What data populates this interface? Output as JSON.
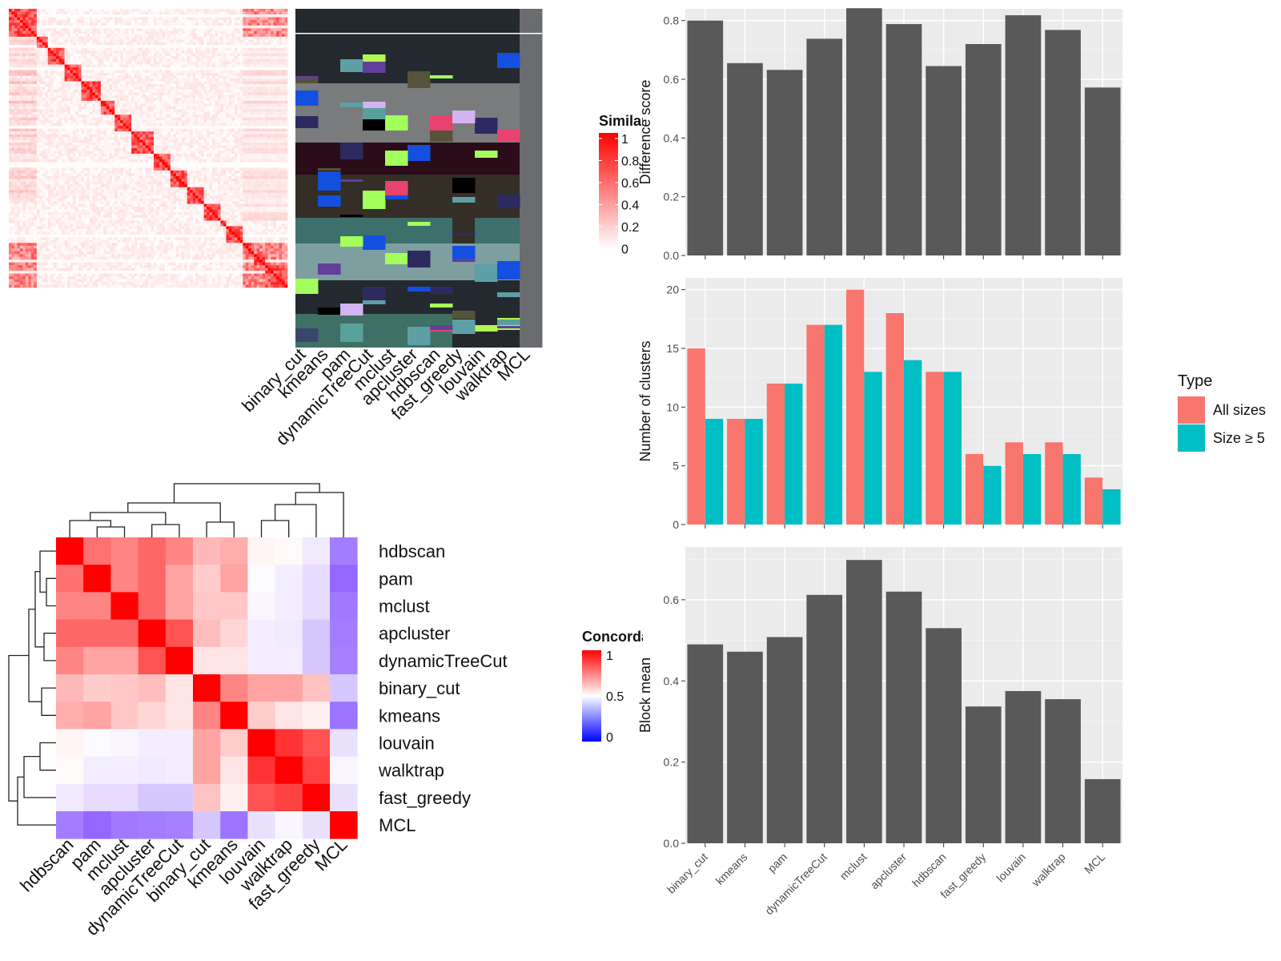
{
  "similarity_heatmap": {
    "legend_title": "Similarity",
    "legend_ticks": [
      "1",
      "0.8",
      "0.6",
      "0.4",
      "0.2",
      "0"
    ],
    "method_labels": [
      "binary_cut",
      "kmeans",
      "pam",
      "dynamicTreeCut",
      "mclust",
      "apcluster",
      "hdbscan",
      "fast_greedy",
      "louvain",
      "walktrap",
      "MCL"
    ]
  },
  "concordance_heatmap": {
    "legend_title": "Concordance",
    "legend_ticks": [
      "1",
      "0.5",
      "0"
    ],
    "labels": [
      "hdbscan",
      "pam",
      "mclust",
      "apcluster",
      "dynamicTreeCut",
      "binary_cut",
      "kmeans",
      "louvain",
      "walktrap",
      "fast_greedy",
      "MCL"
    ],
    "colors": {
      "high": "#FF0000",
      "mid": "#FFFFFF",
      "low": "#0000FF"
    },
    "matrix": [
      [
        1.0,
        0.78,
        0.74,
        0.8,
        0.74,
        0.64,
        0.66,
        0.52,
        0.51,
        0.45,
        0.2
      ],
      [
        0.78,
        1.0,
        0.74,
        0.8,
        0.68,
        0.6,
        0.68,
        0.49,
        0.46,
        0.42,
        0.15
      ],
      [
        0.74,
        0.74,
        1.0,
        0.8,
        0.68,
        0.61,
        0.61,
        0.48,
        0.46,
        0.42,
        0.19
      ],
      [
        0.8,
        0.8,
        0.8,
        1.0,
        0.84,
        0.63,
        0.58,
        0.46,
        0.45,
        0.37,
        0.2
      ],
      [
        0.74,
        0.68,
        0.68,
        0.84,
        1.0,
        0.55,
        0.55,
        0.46,
        0.46,
        0.37,
        0.21
      ],
      [
        0.64,
        0.6,
        0.61,
        0.63,
        0.55,
        1.0,
        0.74,
        0.68,
        0.68,
        0.62,
        0.37
      ],
      [
        0.66,
        0.68,
        0.61,
        0.58,
        0.55,
        0.74,
        1.0,
        0.6,
        0.55,
        0.53,
        0.18
      ],
      [
        0.52,
        0.49,
        0.48,
        0.46,
        0.46,
        0.68,
        0.6,
        1.0,
        0.9,
        0.84,
        0.43
      ],
      [
        0.51,
        0.46,
        0.46,
        0.45,
        0.46,
        0.68,
        0.55,
        0.9,
        1.0,
        0.87,
        0.48
      ],
      [
        0.45,
        0.42,
        0.42,
        0.37,
        0.37,
        0.62,
        0.53,
        0.84,
        0.87,
        1.0,
        0.43
      ],
      [
        0.2,
        0.15,
        0.19,
        0.2,
        0.21,
        0.37,
        0.18,
        0.43,
        0.48,
        0.43,
        1.0
      ]
    ]
  },
  "chart_data": [
    {
      "type": "bar",
      "categories": [
        "binary_cut",
        "kmeans",
        "pam",
        "dynamicTreeCut",
        "mclust",
        "apcluster",
        "hdbscan",
        "fast_greedy",
        "louvain",
        "walktrap",
        "MCL"
      ],
      "values": [
        0.8,
        0.655,
        0.632,
        0.738,
        0.842,
        0.788,
        0.645,
        0.72,
        0.818,
        0.768,
        0.572
      ],
      "xlabel": "",
      "ylabel": "Difference score",
      "ylim": [
        0,
        0.84
      ],
      "yticks": [
        "0.0",
        "0.2",
        "0.4",
        "0.6",
        "0.8"
      ],
      "ytick_values": [
        0,
        0.2,
        0.4,
        0.6,
        0.8
      ],
      "color": "#595959",
      "grid": true,
      "show_xticklabels": false
    },
    {
      "type": "bar",
      "categories": [
        "binary_cut",
        "kmeans",
        "pam",
        "dynamicTreeCut",
        "mclust",
        "apcluster",
        "hdbscan",
        "fast_greedy",
        "louvain",
        "walktrap",
        "MCL"
      ],
      "series": [
        {
          "name": "All sizes",
          "color": "#F8766D",
          "values": [
            15,
            9,
            12,
            17,
            20,
            18,
            13,
            6,
            7,
            7,
            4
          ]
        },
        {
          "name": "Size ≥ 5",
          "color": "#00BFC4",
          "values": [
            9,
            9,
            12,
            17,
            13,
            14,
            13,
            5,
            6,
            6,
            3
          ]
        }
      ],
      "xlabel": "",
      "ylabel": "Number of clusters",
      "ylim": [
        0,
        21
      ],
      "yticks": [
        "0",
        "5",
        "10",
        "15",
        "20"
      ],
      "ytick_values": [
        0,
        5,
        10,
        15,
        20
      ],
      "legend_title": "Type",
      "legend_position": "right",
      "grid": true,
      "show_xticklabels": false
    },
    {
      "type": "bar",
      "categories": [
        "binary_cut",
        "kmeans",
        "pam",
        "dynamicTreeCut",
        "mclust",
        "apcluster",
        "hdbscan",
        "fast_greedy",
        "louvain",
        "walktrap",
        "MCL"
      ],
      "values": [
        0.49,
        0.472,
        0.508,
        0.612,
        0.698,
        0.62,
        0.53,
        0.337,
        0.375,
        0.355,
        0.158
      ],
      "xlabel": "",
      "ylabel": "Block mean",
      "ylim": [
        0,
        0.73
      ],
      "yticks": [
        "0.0",
        "0.2",
        "0.4",
        "0.6"
      ],
      "ytick_values": [
        0,
        0.2,
        0.4,
        0.6
      ],
      "color": "#595959",
      "grid": true,
      "show_xticklabels": true
    }
  ]
}
